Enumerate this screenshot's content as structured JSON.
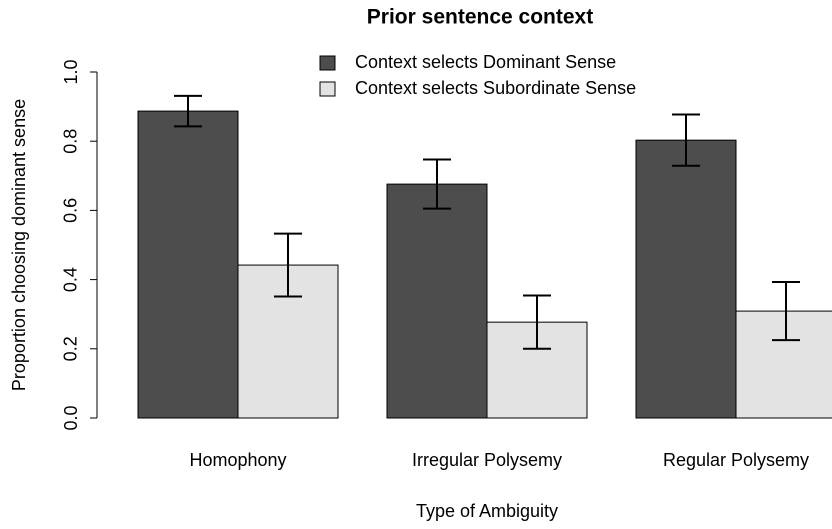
{
  "chart_data": {
    "type": "bar",
    "title": "Prior sentence context",
    "xlabel": "Type of Ambiguity",
    "ylabel": "Proportion choosing dominant sense",
    "categories": [
      "Homophony",
      "Irregular Polysemy",
      "Regular Polysemy"
    ],
    "series": [
      {
        "name": "Context selects Dominant Sense",
        "color": "#4d4d4d",
        "values": [
          0.887,
          0.676,
          0.803
        ],
        "errors": [
          0.044,
          0.071,
          0.074
        ]
      },
      {
        "name": "Context selects Subordinate Sense",
        "color": "#e3e3e3",
        "values": [
          0.442,
          0.277,
          0.309
        ],
        "errors": [
          0.091,
          0.077,
          0.084
        ]
      }
    ],
    "ylim": [
      0,
      1
    ],
    "yticks": [
      {
        "value": 0,
        "label": "0.0"
      },
      0.2,
      0.4,
      0.6,
      0.8,
      {
        "value": 1,
        "label": "1.0"
      }
    ],
    "legend": "top",
    "grid": false
  }
}
